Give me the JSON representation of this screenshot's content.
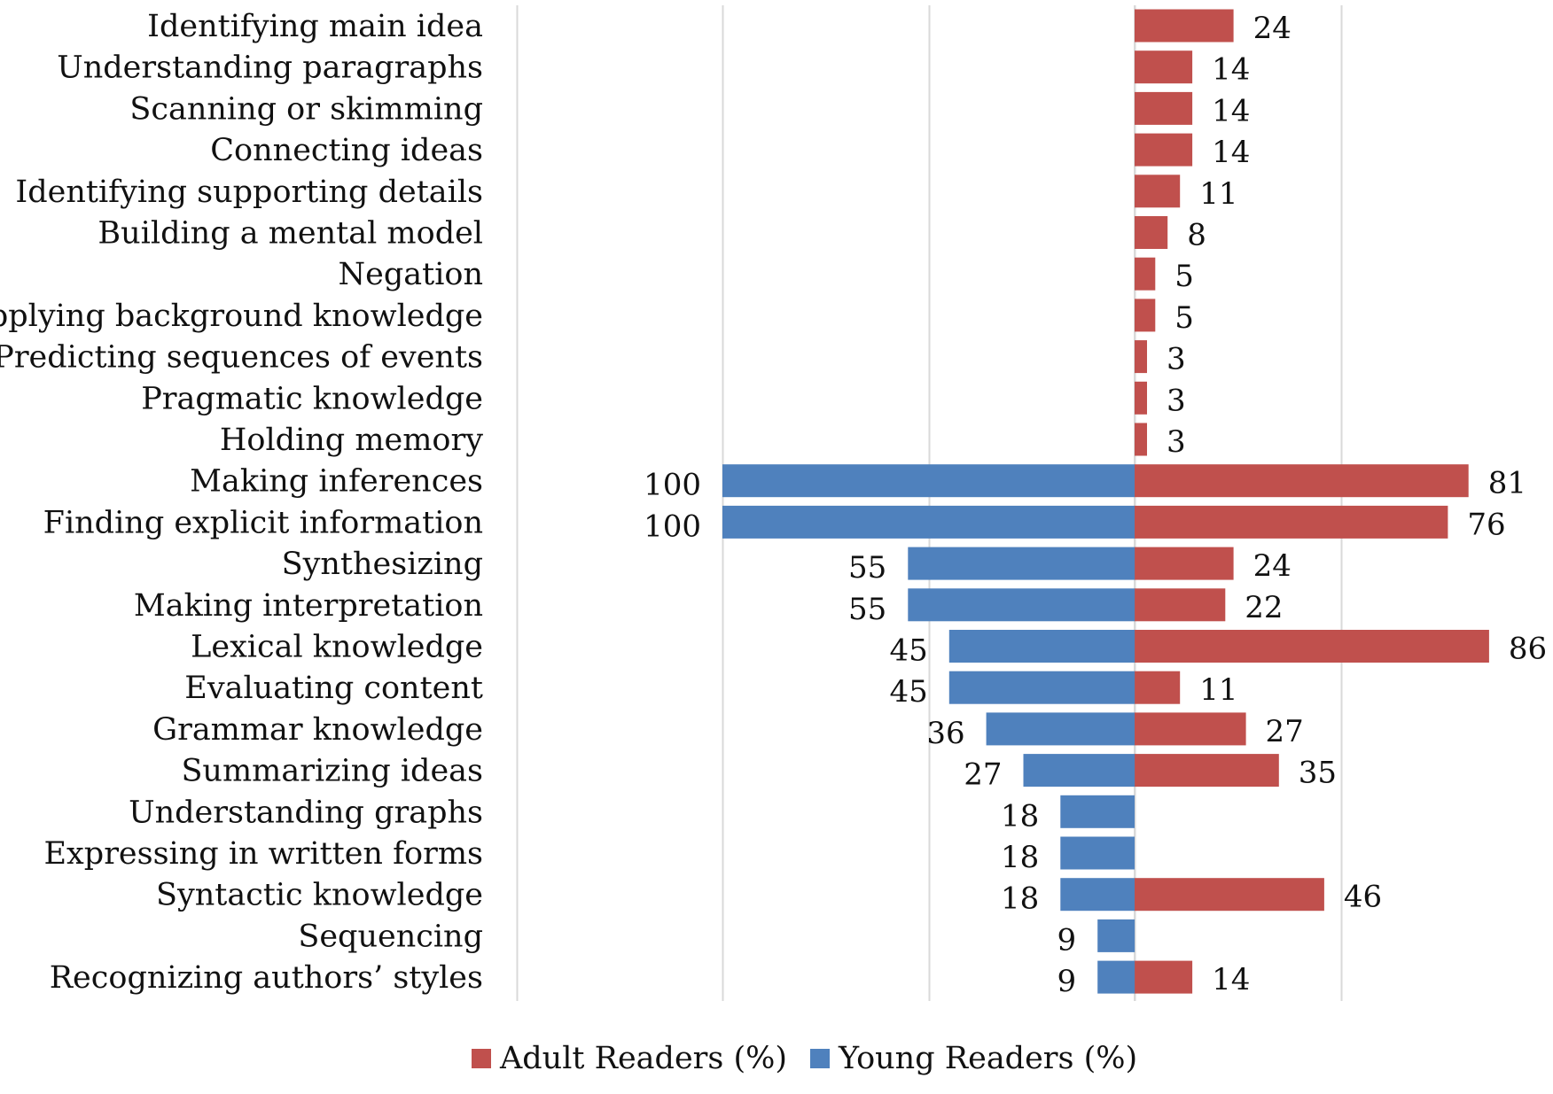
{
  "chart_data": {
    "type": "bar",
    "orientation": "horizontal-diverging",
    "categories": [
      "Identifying main idea",
      "Understanding paragraphs",
      "Scanning or skimming",
      "Connecting ideas",
      "Identifying supporting details",
      "Building a mental model",
      "Negation",
      "Applying background knowledge",
      "Predicting sequences of events",
      "Pragmatic knowledge",
      "Holding memory",
      "Making inferences",
      "Finding explicit information",
      "Synthesizing",
      "Making interpretation",
      "Lexical knowledge",
      "Evaluating content",
      "Grammar knowledge",
      "Summarizing ideas",
      "Understanding graphs",
      "Expressing in written forms",
      "Syntactic knowledge",
      "Sequencing",
      "Recognizing authors’ styles"
    ],
    "series": [
      {
        "name": "Adult Readers (%)",
        "color": "#c0504d",
        "direction": "right",
        "values": [
          24,
          14,
          14,
          14,
          11,
          8,
          5,
          5,
          3,
          3,
          3,
          81,
          76,
          24,
          22,
          86,
          11,
          27,
          35,
          null,
          null,
          46,
          null,
          14
        ]
      },
      {
        "name": "Young Readers (%)",
        "color": "#4f81bd",
        "direction": "left",
        "values": [
          null,
          null,
          null,
          null,
          null,
          null,
          null,
          null,
          null,
          null,
          null,
          100,
          100,
          55,
          55,
          45,
          45,
          36,
          27,
          18,
          18,
          18,
          9,
          9
        ]
      }
    ],
    "xlim": [
      -150,
      100
    ],
    "grid_interval": 50,
    "legend_position": "bottom"
  }
}
